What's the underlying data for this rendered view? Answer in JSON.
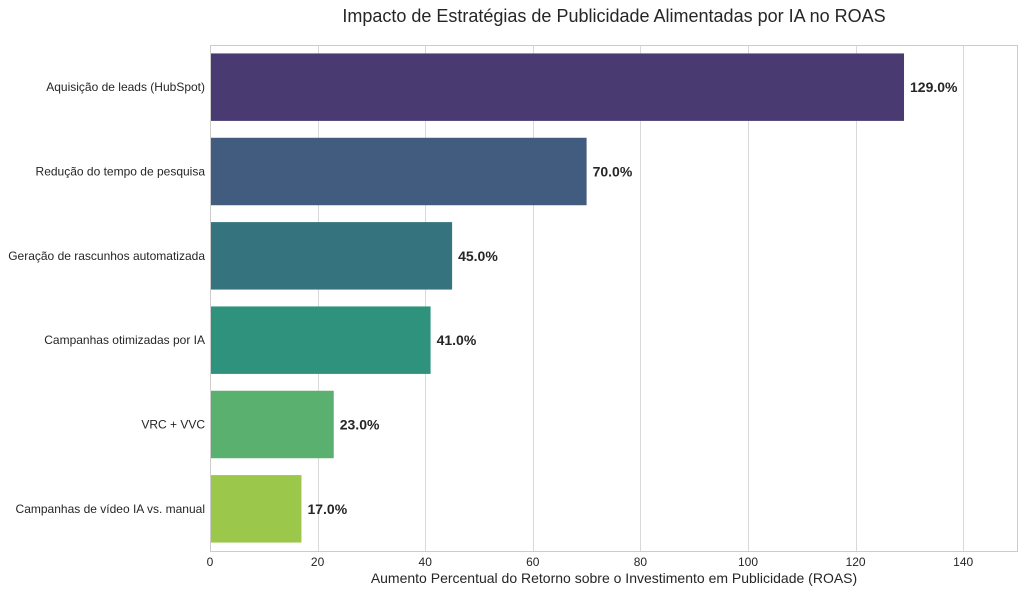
{
  "chart_data": {
    "type": "bar",
    "orientation": "horizontal",
    "title": "Impacto de Estratégias de Publicidade Alimentadas por IA no ROAS",
    "xlabel": "Aumento Percentual do Retorno sobre o Investimento em Publicidade (ROAS)",
    "ylabel": "",
    "xlim": [
      0,
      150
    ],
    "xticks": [
      0,
      20,
      40,
      60,
      80,
      100,
      120,
      140
    ],
    "grid": true,
    "categories": [
      "Aquisição de leads (HubSpot)",
      "Redução do tempo de pesquisa",
      "Geração de rascunhos automatizada",
      "Campanhas otimizadas por IA",
      "VRC + VVC",
      "Campanhas de vídeo IA vs. manual"
    ],
    "values": [
      129,
      70,
      45,
      41,
      23,
      17
    ],
    "value_labels": [
      "129.0%",
      "70.0%",
      "45.0%",
      "41.0%",
      "23.0%",
      "17.0%"
    ],
    "colors": [
      "#4a3a72",
      "#415c7f",
      "#35747f",
      "#2f927d",
      "#5ab16f",
      "#9bc84b"
    ]
  }
}
